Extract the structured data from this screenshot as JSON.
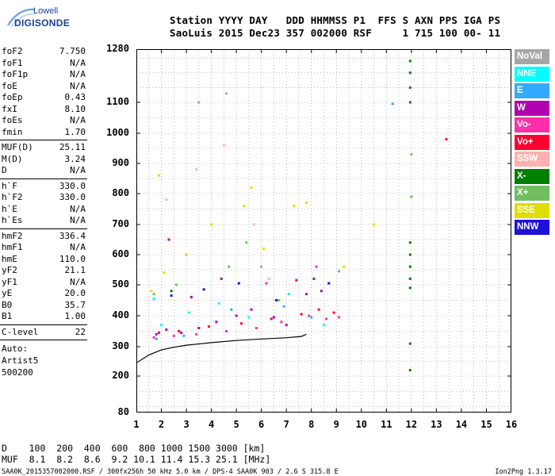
{
  "logo": {
    "line1": "Lowell",
    "line2": "DIGISONDE"
  },
  "header": {
    "row1": "Station YYYY DAY   DDD HHMMSS P1  FFS S AXN PPS IGA PS",
    "row2": "SaoLuis 2015 Dec23 357 002000 RSF     1 715 100 00- 11"
  },
  "params": [
    {
      "key": "foF2",
      "value": "7.750"
    },
    {
      "key": "foF1",
      "value": "N/A"
    },
    {
      "key": "foF1p",
      "value": "N/A"
    },
    {
      "key": "foE",
      "value": "N/A"
    },
    {
      "key": "foEp",
      "value": "0.43"
    },
    {
      "key": "fxI",
      "value": "8.10"
    },
    {
      "key": "foEs",
      "value": "N/A"
    },
    {
      "key": "fmin",
      "value": "1.70"
    },
    {
      "key": "MUF(D)",
      "value": "25.11"
    },
    {
      "key": "M(D)",
      "value": "3.24"
    },
    {
      "key": "D",
      "value": "N/A"
    },
    {
      "key": "h`F",
      "value": "330.0"
    },
    {
      "key": "h`F2",
      "value": "330.0"
    },
    {
      "key": "h`E",
      "value": "N/A"
    },
    {
      "key": "h`Es",
      "value": "N/A"
    },
    {
      "key": "hmF2",
      "value": "336.4"
    },
    {
      "key": "hmF1",
      "value": "N/A"
    },
    {
      "key": "hmE",
      "value": "110.0"
    },
    {
      "key": "yF2",
      "value": "21.1"
    },
    {
      "key": "yF1",
      "value": "N/A"
    },
    {
      "key": "yE",
      "value": "20.0"
    },
    {
      "key": "B0",
      "value": "35.7"
    },
    {
      "key": "B1",
      "value": "1.00"
    },
    {
      "key": "C-level",
      "value": "22"
    }
  ],
  "auto": [
    "Auto:",
    "Artist5",
    "500200"
  ],
  "legend": [
    {
      "label": "NoVal",
      "bg": "#a6a6a6",
      "fg": "#ffffff"
    },
    {
      "label": "NNE",
      "bg": "#00ffff",
      "fg": "#ffffff"
    },
    {
      "label": "E",
      "bg": "#33aaff",
      "fg": "#ffffff"
    },
    {
      "label": "W",
      "bg": "#b000b0",
      "fg": "#ffffff"
    },
    {
      "label": "Vo-",
      "bg": "#ff2fa8",
      "fg": "#ffffff"
    },
    {
      "label": "Vo+",
      "bg": "#ff0030",
      "fg": "#ffffff"
    },
    {
      "label": "SSW",
      "bg": "#ffb0b0",
      "fg": "#ffffff"
    },
    {
      "label": "X-",
      "bg": "#008000",
      "fg": "#ffffff"
    },
    {
      "label": "X+",
      "bg": "#6fbf5f",
      "fg": "#ffffff"
    },
    {
      "label": "SSE",
      "bg": "#dede00",
      "fg": "#ffffff"
    },
    {
      "label": "NNW",
      "bg": "#1e10d8",
      "fg": "#ffffff"
    }
  ],
  "bottom": {
    "d_row": "D    100  200  400  600  800 1000 1500 3000 [km]",
    "muf_row": "MUF  8.1  8.2  8.6  9.2 10.1 11.4 15.3 25.1 [MHz]",
    "footer": "SAA0K_2015357002000.RSF / 300fx256h 50 kHz 5.0 km / DPS-4 SAA0K 903 / 2.6 S 315.8 E",
    "version": "Ion2Png 1.3.17"
  },
  "chart_data": {
    "type": "scatter",
    "title": "",
    "xlabel": "",
    "ylabel": "",
    "xlim": [
      1,
      16
    ],
    "ylim": [
      80,
      1280
    ],
    "y_scale": "ionogram-nonlinear",
    "x_ticks": [
      1,
      2,
      3,
      4,
      5,
      6,
      7,
      8,
      9,
      10,
      11,
      12,
      13,
      14,
      15,
      16
    ],
    "y_ticks": [
      80,
      200,
      300,
      400,
      500,
      600,
      700,
      800,
      900,
      1000,
      1100,
      1280
    ],
    "grid": true,
    "legend_position": "right",
    "series": [
      {
        "name": "W",
        "color": "#b000b0",
        "points": [
          [
            1.8,
            340
          ],
          [
            2.2,
            355
          ],
          [
            2.8,
            345
          ],
          [
            3.5,
            360
          ],
          [
            4.2,
            380
          ],
          [
            5.0,
            400
          ],
          [
            5.6,
            420
          ],
          [
            6.5,
            395
          ],
          [
            7.0,
            370
          ],
          [
            7.8,
            470
          ],
          [
            8.1,
            520
          ],
          [
            8.4,
            480
          ],
          [
            3.2,
            460
          ],
          [
            4.4,
            520
          ],
          [
            2.3,
            650
          ]
        ]
      },
      {
        "name": "Vo-",
        "color": "#ff2fa8",
        "points": [
          [
            1.7,
            330
          ],
          [
            2.5,
            335
          ],
          [
            3.4,
            340
          ],
          [
            4.6,
            350
          ],
          [
            5.8,
            360
          ],
          [
            6.8,
            380
          ],
          [
            7.9,
            400
          ],
          [
            8.6,
            390
          ],
          [
            9.1,
            395
          ],
          [
            8.2,
            560
          ],
          [
            6.2,
            505
          ]
        ]
      },
      {
        "name": "Vo+",
        "color": "#ff0030",
        "points": [
          [
            1.9,
            345
          ],
          [
            2.7,
            350
          ],
          [
            3.9,
            365
          ],
          [
            5.2,
            375
          ],
          [
            6.4,
            390
          ],
          [
            7.6,
            405
          ],
          [
            8.3,
            420
          ],
          [
            8.9,
            410
          ],
          [
            13.4,
            980
          ],
          [
            7.4,
            515
          ]
        ]
      },
      {
        "name": "SSE",
        "color": "#dede00",
        "points": [
          [
            1.6,
            480
          ],
          [
            2.1,
            540
          ],
          [
            3.0,
            600
          ],
          [
            4.0,
            700
          ],
          [
            5.3,
            760
          ],
          [
            5.6,
            820
          ],
          [
            6.1,
            620
          ],
          [
            7.3,
            760
          ],
          [
            7.8,
            770
          ],
          [
            9.3,
            560
          ],
          [
            10.5,
            700
          ],
          [
            1.9,
            860
          ]
        ]
      },
      {
        "name": "X-",
        "color": "#008000",
        "points": [
          [
            11.95,
            1240
          ],
          [
            11.95,
            1200
          ],
          [
            11.95,
            1150
          ],
          [
            11.95,
            1100
          ],
          [
            11.95,
            640
          ],
          [
            11.95,
            600
          ],
          [
            11.95,
            560
          ],
          [
            11.95,
            520
          ],
          [
            11.95,
            490
          ],
          [
            11.95,
            310
          ],
          [
            11.95,
            220
          ],
          [
            2.4,
            480
          ]
        ]
      },
      {
        "name": "X+",
        "color": "#6fbf5f",
        "points": [
          [
            1.7,
            470
          ],
          [
            2.6,
            500
          ],
          [
            4.7,
            560
          ],
          [
            5.4,
            640
          ],
          [
            6.7,
            450
          ],
          [
            12.0,
            930
          ],
          [
            12.0,
            790
          ],
          [
            9.1,
            545
          ]
        ]
      },
      {
        "name": "NNE",
        "color": "#00ffff",
        "points": [
          [
            2.0,
            370
          ],
          [
            3.1,
            410
          ],
          [
            4.3,
            440
          ],
          [
            5.5,
            395
          ],
          [
            7.1,
            470
          ],
          [
            8.5,
            370
          ],
          [
            1.7,
            455
          ]
        ]
      },
      {
        "name": "E",
        "color": "#33aaff",
        "points": [
          [
            1.8,
            325
          ],
          [
            2.9,
            335
          ],
          [
            4.8,
            420
          ],
          [
            6.9,
            430
          ],
          [
            11.25,
            1095
          ],
          [
            8.0,
            395
          ]
        ]
      },
      {
        "name": "NNW",
        "color": "#1e10d8",
        "points": [
          [
            2.4,
            465
          ],
          [
            3.7,
            485
          ],
          [
            5.1,
            505
          ],
          [
            6.6,
            450
          ],
          [
            8.7,
            505
          ]
        ]
      },
      {
        "name": "SSW",
        "color": "#ffb0b0",
        "points": [
          [
            2.2,
            780
          ],
          [
            3.4,
            880
          ],
          [
            4.5,
            960
          ],
          [
            5.7,
            700
          ],
          [
            6.3,
            520
          ]
        ]
      },
      {
        "name": "NoVal",
        "color": "#a6a6a6",
        "points": [
          [
            3.5,
            1100
          ],
          [
            4.6,
            1130
          ],
          [
            6.0,
            560
          ]
        ]
      }
    ],
    "curve": [
      [
        1.0,
        245
      ],
      [
        1.5,
        272
      ],
      [
        2.0,
        289
      ],
      [
        2.5,
        298
      ],
      [
        3.0,
        305
      ],
      [
        4.0,
        313
      ],
      [
        5.0,
        320
      ],
      [
        6.0,
        325
      ],
      [
        7.0,
        329
      ],
      [
        7.6,
        333
      ],
      [
        7.8,
        340
      ]
    ]
  }
}
